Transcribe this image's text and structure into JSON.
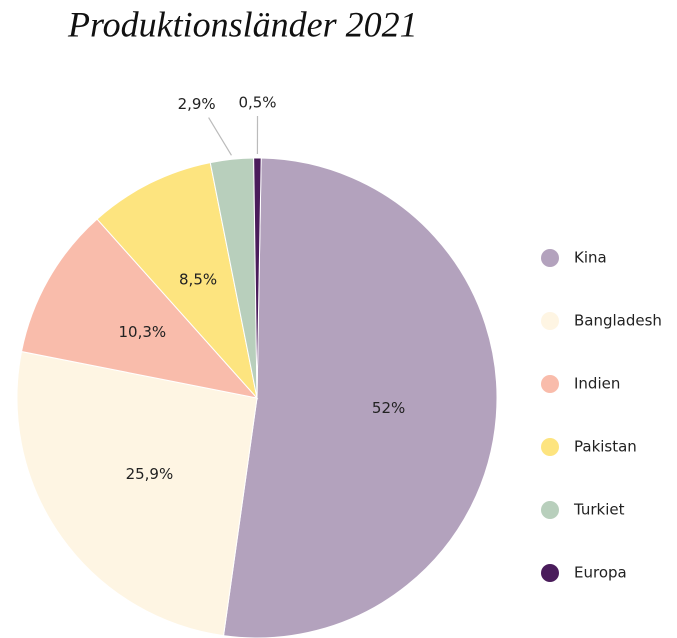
{
  "chart_data": {
    "type": "pie",
    "title": "Produktionsländer 2021",
    "categories": [
      "Kina",
      "Bangladesh",
      "Indien",
      "Pakistan",
      "Turkiet",
      "Europa"
    ],
    "values": [
      52,
      25.9,
      10.3,
      8.5,
      2.9,
      0.5
    ],
    "value_labels": [
      "52%",
      "25,9%",
      "10,3%",
      "8,5%",
      "2,9%",
      "0,5%"
    ],
    "colors": [
      "#b3a2bd",
      "#fef5e3",
      "#f9bcab",
      "#fde47f",
      "#b8cfbc",
      "#4a1c5b"
    ],
    "legend": "right"
  }
}
